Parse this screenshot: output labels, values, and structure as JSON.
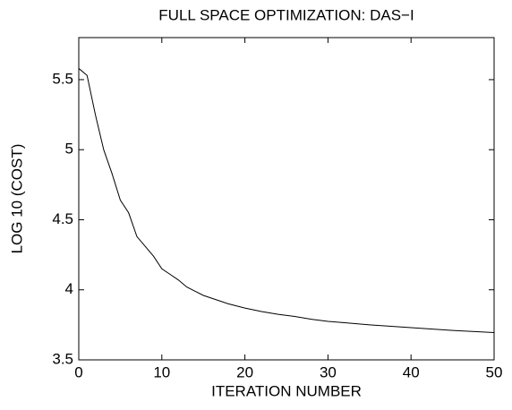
{
  "chart_data": {
    "type": "line",
    "title": "FULL SPACE OPTIMIZATION: DAS−I",
    "x_label": "ITERATION NUMBER",
    "y_label": "LOG 10 (COST)",
    "x": [
      0,
      1,
      2,
      3,
      4,
      5,
      6,
      7,
      8,
      9,
      10,
      11,
      12,
      13,
      14,
      15,
      16,
      17,
      18,
      19,
      20,
      22,
      24,
      26,
      28,
      30,
      32,
      35,
      40,
      45,
      50
    ],
    "series": [
      {
        "color": "#000000",
        "values": [
          5.58,
          5.53,
          5.25,
          5.0,
          4.83,
          4.64,
          4.55,
          4.38,
          4.31,
          4.24,
          4.15,
          4.11,
          4.07,
          4.02,
          3.99,
          3.96,
          3.94,
          3.92,
          3.9,
          3.885,
          3.87,
          3.845,
          3.825,
          3.81,
          3.79,
          3.775,
          3.765,
          3.75,
          3.73,
          3.71,
          3.695
        ]
      }
    ],
    "xlim": [
      0,
      50
    ],
    "xticks": [
      0,
      10,
      20,
      30,
      40,
      50
    ],
    "ylim": [
      3.5,
      5.8
    ],
    "yticks": [
      3.5,
      4,
      4.5,
      5,
      5.5
    ],
    "grid": false
  }
}
